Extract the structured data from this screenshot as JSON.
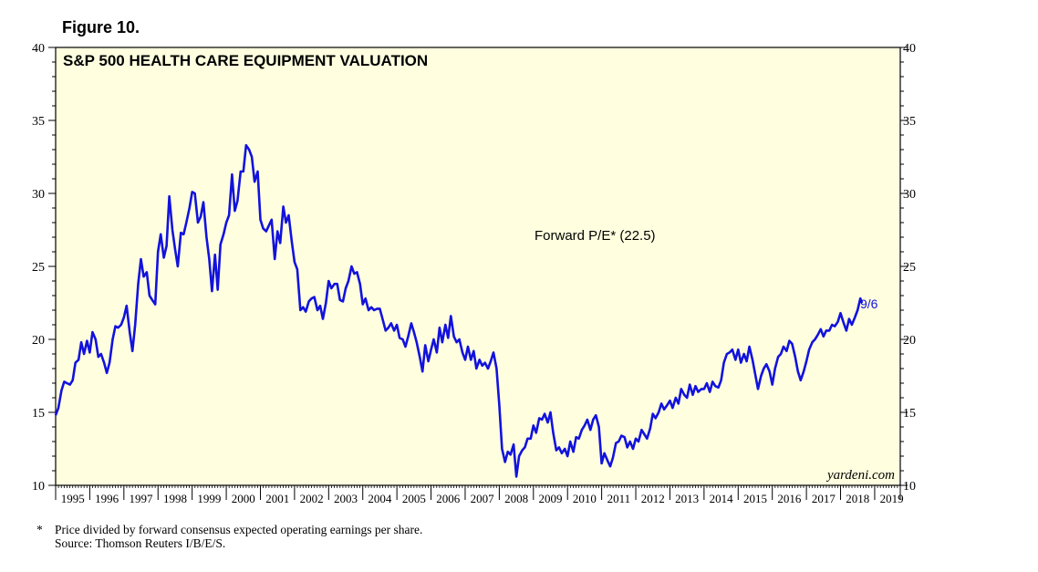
{
  "figure_label": "Figure 10.",
  "colors": {
    "plot_bg": "#FFFFE0",
    "line": "#1212DD",
    "axis": "#000000"
  },
  "chart_data": {
    "type": "line",
    "title": "S&P 500 HEALTH CARE EQUIPMENT VALUATION",
    "series_label": "Forward P/E* (22.5)",
    "end_label": "9/6",
    "watermark": "yardeni.com",
    "xlim": [
      1995.0,
      2019.75
    ],
    "ylim": [
      10,
      40
    ],
    "y_ticks": [
      10,
      15,
      20,
      25,
      30,
      35,
      40
    ],
    "y_tick_labels": [
      "10",
      "15",
      "20",
      "25",
      "30",
      "35",
      "40"
    ],
    "x_tick_labels": [
      "1995",
      "1996",
      "1997",
      "1998",
      "1999",
      "2000",
      "2001",
      "2002",
      "2003",
      "2004",
      "2005",
      "2006",
      "2007",
      "2008",
      "2009",
      "2010",
      "2011",
      "2012",
      "2013",
      "2014",
      "2015",
      "2016",
      "2017",
      "2018",
      "2019"
    ],
    "series": [
      {
        "name": "Forward P/E",
        "points": [
          [
            1995.0,
            14.8
          ],
          [
            1995.08,
            15.3
          ],
          [
            1995.17,
            16.5
          ],
          [
            1995.25,
            17.1
          ],
          [
            1995.33,
            17.0
          ],
          [
            1995.42,
            16.9
          ],
          [
            1995.5,
            17.2
          ],
          [
            1995.58,
            18.4
          ],
          [
            1995.67,
            18.6
          ],
          [
            1995.75,
            19.8
          ],
          [
            1995.83,
            19.0
          ],
          [
            1995.92,
            19.9
          ],
          [
            1996.0,
            19.1
          ],
          [
            1996.08,
            20.5
          ],
          [
            1996.17,
            20.0
          ],
          [
            1996.25,
            18.8
          ],
          [
            1996.33,
            19.0
          ],
          [
            1996.42,
            18.4
          ],
          [
            1996.5,
            17.7
          ],
          [
            1996.58,
            18.4
          ],
          [
            1996.67,
            20.0
          ],
          [
            1996.75,
            20.9
          ],
          [
            1996.83,
            20.8
          ],
          [
            1996.92,
            21.0
          ],
          [
            1997.0,
            21.5
          ],
          [
            1997.08,
            22.3
          ],
          [
            1997.17,
            20.5
          ],
          [
            1997.25,
            19.2
          ],
          [
            1997.33,
            21.0
          ],
          [
            1997.42,
            23.8
          ],
          [
            1997.5,
            25.5
          ],
          [
            1997.58,
            24.3
          ],
          [
            1997.67,
            24.6
          ],
          [
            1997.75,
            23.0
          ],
          [
            1997.83,
            22.7
          ],
          [
            1997.92,
            22.4
          ],
          [
            1998.0,
            26.0
          ],
          [
            1998.08,
            27.2
          ],
          [
            1998.17,
            25.6
          ],
          [
            1998.25,
            26.4
          ],
          [
            1998.33,
            29.8
          ],
          [
            1998.42,
            27.5
          ],
          [
            1998.5,
            26.2
          ],
          [
            1998.58,
            25.0
          ],
          [
            1998.67,
            27.3
          ],
          [
            1998.75,
            27.2
          ],
          [
            1998.83,
            28.0
          ],
          [
            1998.92,
            29.0
          ],
          [
            1999.0,
            30.1
          ],
          [
            1999.08,
            30.0
          ],
          [
            1999.17,
            28.0
          ],
          [
            1999.25,
            28.4
          ],
          [
            1999.33,
            29.4
          ],
          [
            1999.42,
            27.0
          ],
          [
            1999.5,
            25.5
          ],
          [
            1999.58,
            23.3
          ],
          [
            1999.67,
            25.8
          ],
          [
            1999.75,
            23.4
          ],
          [
            1999.83,
            26.5
          ],
          [
            1999.92,
            27.2
          ],
          [
            2000.0,
            28.0
          ],
          [
            2000.08,
            28.5
          ],
          [
            2000.17,
            31.3
          ],
          [
            2000.25,
            28.8
          ],
          [
            2000.33,
            29.5
          ],
          [
            2000.42,
            31.5
          ],
          [
            2000.5,
            31.5
          ],
          [
            2000.58,
            33.3
          ],
          [
            2000.67,
            33.0
          ],
          [
            2000.75,
            32.5
          ],
          [
            2000.83,
            30.8
          ],
          [
            2000.92,
            31.5
          ],
          [
            2001.0,
            28.2
          ],
          [
            2001.08,
            27.6
          ],
          [
            2001.17,
            27.4
          ],
          [
            2001.25,
            27.8
          ],
          [
            2001.33,
            28.2
          ],
          [
            2001.42,
            25.5
          ],
          [
            2001.5,
            27.4
          ],
          [
            2001.58,
            26.6
          ],
          [
            2001.67,
            29.1
          ],
          [
            2001.75,
            28.0
          ],
          [
            2001.83,
            28.5
          ],
          [
            2001.92,
            26.7
          ],
          [
            2002.0,
            25.3
          ],
          [
            2002.08,
            24.8
          ],
          [
            2002.17,
            22.0
          ],
          [
            2002.25,
            22.2
          ],
          [
            2002.33,
            21.9
          ],
          [
            2002.42,
            22.6
          ],
          [
            2002.5,
            22.8
          ],
          [
            2002.58,
            22.9
          ],
          [
            2002.67,
            22.0
          ],
          [
            2002.75,
            22.3
          ],
          [
            2002.83,
            21.4
          ],
          [
            2002.92,
            22.5
          ],
          [
            2003.0,
            24.0
          ],
          [
            2003.08,
            23.5
          ],
          [
            2003.17,
            23.8
          ],
          [
            2003.25,
            23.8
          ],
          [
            2003.33,
            22.7
          ],
          [
            2003.42,
            22.6
          ],
          [
            2003.5,
            23.5
          ],
          [
            2003.58,
            24.0
          ],
          [
            2003.67,
            25.0
          ],
          [
            2003.75,
            24.5
          ],
          [
            2003.83,
            24.6
          ],
          [
            2003.92,
            23.8
          ],
          [
            2004.0,
            22.4
          ],
          [
            2004.08,
            22.8
          ],
          [
            2004.17,
            22.0
          ],
          [
            2004.25,
            22.2
          ],
          [
            2004.33,
            22.0
          ],
          [
            2004.42,
            22.1
          ],
          [
            2004.5,
            22.1
          ],
          [
            2004.58,
            21.4
          ],
          [
            2004.67,
            20.6
          ],
          [
            2004.75,
            20.8
          ],
          [
            2004.83,
            21.1
          ],
          [
            2004.92,
            20.6
          ],
          [
            2005.0,
            21.0
          ],
          [
            2005.08,
            20.1
          ],
          [
            2005.17,
            20.0
          ],
          [
            2005.25,
            19.5
          ],
          [
            2005.33,
            20.2
          ],
          [
            2005.42,
            21.1
          ],
          [
            2005.5,
            20.5
          ],
          [
            2005.58,
            19.8
          ],
          [
            2005.67,
            18.8
          ],
          [
            2005.75,
            17.8
          ],
          [
            2005.83,
            19.6
          ],
          [
            2005.92,
            18.5
          ],
          [
            2006.0,
            19.3
          ],
          [
            2006.08,
            20.0
          ],
          [
            2006.17,
            19.1
          ],
          [
            2006.25,
            20.8
          ],
          [
            2006.33,
            19.8
          ],
          [
            2006.42,
            21.0
          ],
          [
            2006.5,
            20.1
          ],
          [
            2006.58,
            21.6
          ],
          [
            2006.67,
            20.2
          ],
          [
            2006.75,
            19.8
          ],
          [
            2006.83,
            20.0
          ],
          [
            2006.92,
            19.1
          ],
          [
            2007.0,
            18.6
          ],
          [
            2007.08,
            19.5
          ],
          [
            2007.17,
            18.6
          ],
          [
            2007.25,
            19.2
          ],
          [
            2007.33,
            18.0
          ],
          [
            2007.42,
            18.6
          ],
          [
            2007.5,
            18.2
          ],
          [
            2007.58,
            18.4
          ],
          [
            2007.67,
            18.0
          ],
          [
            2007.75,
            18.5
          ],
          [
            2007.83,
            19.1
          ],
          [
            2007.92,
            18.0
          ],
          [
            2008.0,
            15.5
          ],
          [
            2008.08,
            12.5
          ],
          [
            2008.17,
            11.6
          ],
          [
            2008.25,
            12.3
          ],
          [
            2008.33,
            12.1
          ],
          [
            2008.42,
            12.8
          ],
          [
            2008.5,
            10.6
          ],
          [
            2008.58,
            12.0
          ],
          [
            2008.67,
            12.4
          ],
          [
            2008.75,
            12.6
          ],
          [
            2008.83,
            13.2
          ],
          [
            2008.92,
            13.2
          ],
          [
            2009.0,
            14.1
          ],
          [
            2009.08,
            13.6
          ],
          [
            2009.17,
            14.6
          ],
          [
            2009.25,
            14.5
          ],
          [
            2009.33,
            14.9
          ],
          [
            2009.42,
            14.3
          ],
          [
            2009.5,
            15.0
          ],
          [
            2009.58,
            13.6
          ],
          [
            2009.67,
            12.4
          ],
          [
            2009.75,
            12.6
          ],
          [
            2009.83,
            12.2
          ],
          [
            2009.92,
            12.5
          ],
          [
            2010.0,
            12.0
          ],
          [
            2010.08,
            13.0
          ],
          [
            2010.17,
            12.3
          ],
          [
            2010.25,
            13.3
          ],
          [
            2010.33,
            13.2
          ],
          [
            2010.42,
            13.8
          ],
          [
            2010.5,
            14.1
          ],
          [
            2010.58,
            14.5
          ],
          [
            2010.67,
            13.8
          ],
          [
            2010.75,
            14.5
          ],
          [
            2010.83,
            14.8
          ],
          [
            2010.92,
            14.0
          ],
          [
            2011.0,
            11.5
          ],
          [
            2011.08,
            12.2
          ],
          [
            2011.17,
            11.7
          ],
          [
            2011.25,
            11.3
          ],
          [
            2011.33,
            11.9
          ],
          [
            2011.42,
            12.9
          ],
          [
            2011.5,
            13.0
          ],
          [
            2011.58,
            13.4
          ],
          [
            2011.67,
            13.3
          ],
          [
            2011.75,
            12.6
          ],
          [
            2011.83,
            13.0
          ],
          [
            2011.92,
            12.5
          ],
          [
            2012.0,
            13.2
          ],
          [
            2012.08,
            13.0
          ],
          [
            2012.17,
            13.8
          ],
          [
            2012.25,
            13.5
          ],
          [
            2012.33,
            13.2
          ],
          [
            2012.42,
            13.9
          ],
          [
            2012.5,
            14.9
          ],
          [
            2012.58,
            14.6
          ],
          [
            2012.67,
            15.0
          ],
          [
            2012.75,
            15.6
          ],
          [
            2012.83,
            15.2
          ],
          [
            2012.92,
            15.5
          ],
          [
            2013.0,
            15.8
          ],
          [
            2013.08,
            15.3
          ],
          [
            2013.17,
            16.0
          ],
          [
            2013.25,
            15.6
          ],
          [
            2013.33,
            16.6
          ],
          [
            2013.42,
            16.2
          ],
          [
            2013.5,
            16.0
          ],
          [
            2013.58,
            16.9
          ],
          [
            2013.67,
            16.2
          ],
          [
            2013.75,
            16.8
          ],
          [
            2013.83,
            16.4
          ],
          [
            2013.92,
            16.6
          ],
          [
            2014.0,
            16.6
          ],
          [
            2014.08,
            17.0
          ],
          [
            2014.17,
            16.4
          ],
          [
            2014.25,
            17.1
          ],
          [
            2014.33,
            16.8
          ],
          [
            2014.42,
            16.7
          ],
          [
            2014.5,
            17.2
          ],
          [
            2014.58,
            18.4
          ],
          [
            2014.67,
            19.0
          ],
          [
            2014.75,
            19.1
          ],
          [
            2014.83,
            19.3
          ],
          [
            2014.92,
            18.6
          ],
          [
            2015.0,
            19.3
          ],
          [
            2015.08,
            18.4
          ],
          [
            2015.17,
            19.0
          ],
          [
            2015.25,
            18.5
          ],
          [
            2015.33,
            19.5
          ],
          [
            2015.42,
            18.6
          ],
          [
            2015.5,
            17.6
          ],
          [
            2015.58,
            16.6
          ],
          [
            2015.67,
            17.5
          ],
          [
            2015.75,
            18.0
          ],
          [
            2015.83,
            18.3
          ],
          [
            2015.92,
            17.8
          ],
          [
            2016.0,
            16.9
          ],
          [
            2016.08,
            18.0
          ],
          [
            2016.17,
            18.8
          ],
          [
            2016.25,
            19.0
          ],
          [
            2016.33,
            19.5
          ],
          [
            2016.42,
            19.2
          ],
          [
            2016.5,
            19.9
          ],
          [
            2016.58,
            19.7
          ],
          [
            2016.67,
            18.8
          ],
          [
            2016.75,
            17.8
          ],
          [
            2016.83,
            17.2
          ],
          [
            2016.92,
            17.8
          ],
          [
            2017.0,
            18.5
          ],
          [
            2017.08,
            19.3
          ],
          [
            2017.17,
            19.8
          ],
          [
            2017.25,
            20.0
          ],
          [
            2017.33,
            20.3
          ],
          [
            2017.42,
            20.7
          ],
          [
            2017.5,
            20.2
          ],
          [
            2017.58,
            20.6
          ],
          [
            2017.67,
            20.6
          ],
          [
            2017.75,
            21.0
          ],
          [
            2017.83,
            20.9
          ],
          [
            2017.92,
            21.2
          ],
          [
            2018.0,
            21.8
          ],
          [
            2018.08,
            21.2
          ],
          [
            2018.17,
            20.6
          ],
          [
            2018.25,
            21.4
          ],
          [
            2018.33,
            21.0
          ],
          [
            2018.42,
            21.5
          ],
          [
            2018.5,
            22.0
          ],
          [
            2018.58,
            22.8
          ],
          [
            2018.63,
            22.5
          ]
        ]
      }
    ]
  },
  "footnote": {
    "marker": "*",
    "note": "Price divided by forward consensus expected operating earnings per share.",
    "source": "Source: Thomson Reuters I/B/E/S."
  }
}
